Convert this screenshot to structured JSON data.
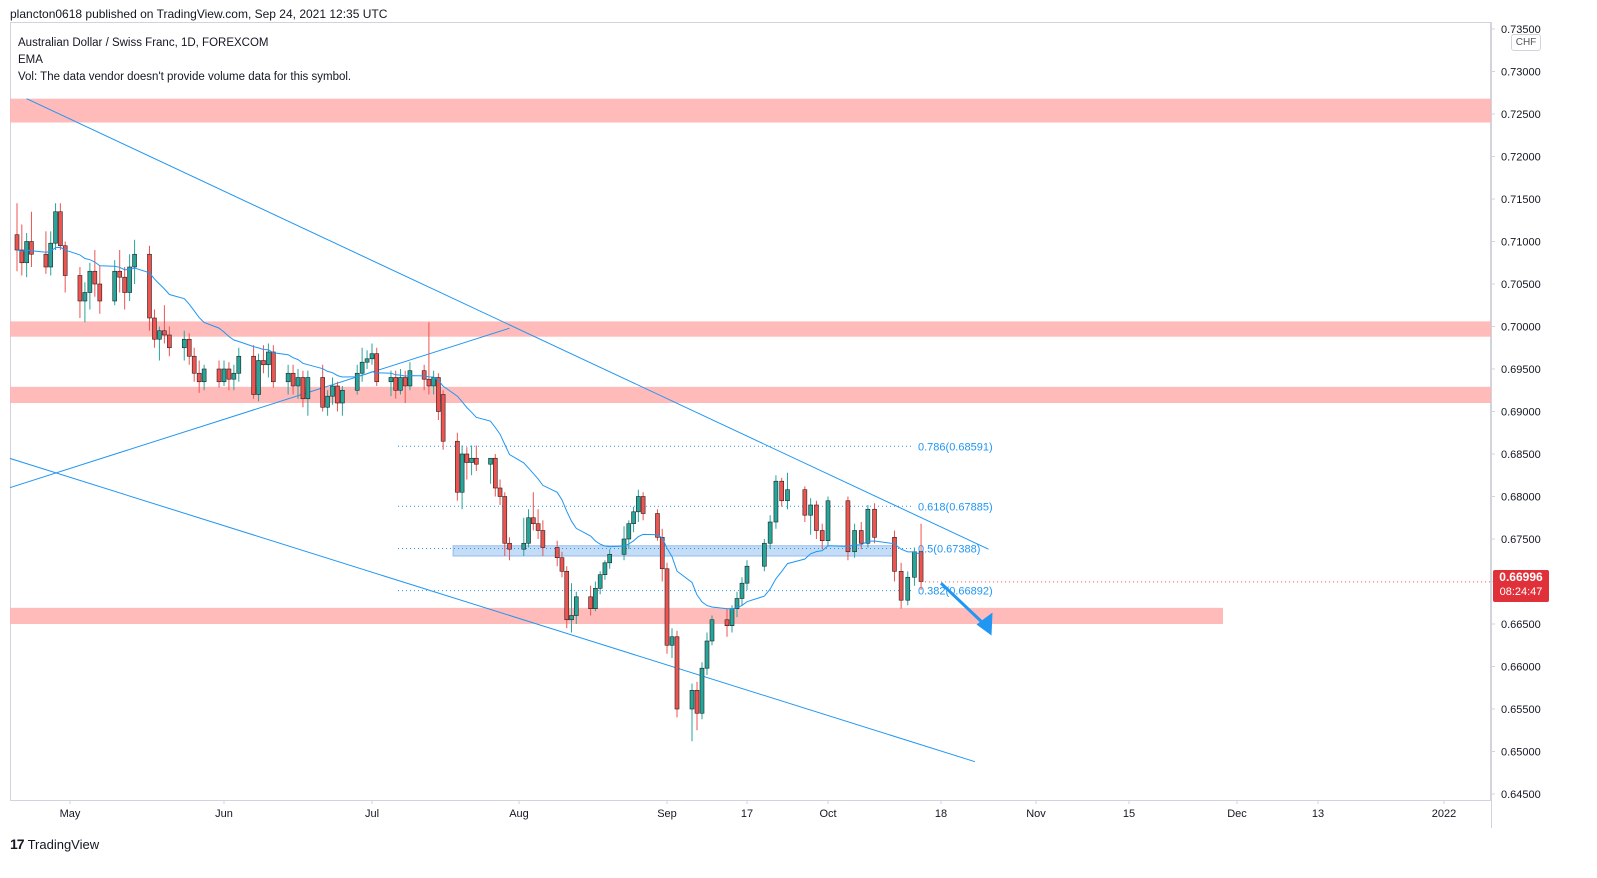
{
  "header": {
    "published": "plancton0618 published on TradingView.com, Sep 24, 2021 12:35 UTC"
  },
  "legend": {
    "symbol": "Australian Dollar / Swiss Franc, 1D, FOREXCOM",
    "indicator": "EMA",
    "vol_note": "Vol: The data vendor doesn't provide volume data for this symbol."
  },
  "currency": "CHF",
  "last_price": {
    "value": "0.66996",
    "countdown": "08:24:47"
  },
  "footer": {
    "brand": "TradingView",
    "logo": "17"
  },
  "colors": {
    "up": "#26a69a",
    "down": "#ef5350",
    "zone": "#ffb3b3",
    "line": "#2196f3",
    "ema": "#2196f3",
    "axis": "#131722"
  },
  "chart_data": {
    "type": "candlestick",
    "symbol": "AUDCHF",
    "timeframe": "1D",
    "ylim": [
      0.645,
      0.736
    ],
    "y_ticks": [
      "0.73500",
      "0.73000",
      "0.72500",
      "0.72000",
      "0.71500",
      "0.71000",
      "0.70500",
      "0.70000",
      "0.69500",
      "0.69000",
      "0.68500",
      "0.68000",
      "0.67500",
      "0.67000",
      "0.66500",
      "0.66000",
      "0.65500",
      "0.65000",
      "0.64500"
    ],
    "x_ticks": [
      {
        "label": "May",
        "date": "2021-05-01"
      },
      {
        "label": "Jun",
        "date": "2021-06-01"
      },
      {
        "label": "Jul",
        "date": "2021-07-01"
      },
      {
        "label": "Aug",
        "date": "2021-08-01"
      },
      {
        "label": "Sep",
        "date": "2021-09-01"
      },
      {
        "label": "17",
        "date": "2021-09-17"
      },
      {
        "label": "Oct",
        "date": "2021-10-01"
      },
      {
        "label": "18",
        "date": "2021-10-18"
      },
      {
        "label": "Nov",
        "date": "2021-11-01"
      },
      {
        "label": "15",
        "date": "2021-11-15"
      },
      {
        "label": "Dec",
        "date": "2021-12-01"
      },
      {
        "label": "13",
        "date": "2021-12-13"
      },
      {
        "label": "2022",
        "date": "2022-01-01"
      }
    ],
    "candles": [
      [
        "2021-04-20",
        0.7108,
        0.7145,
        0.7065,
        0.709
      ],
      [
        "2021-04-21",
        0.709,
        0.712,
        0.706,
        0.7075
      ],
      [
        "2021-04-22",
        0.7075,
        0.711,
        0.7058,
        0.71
      ],
      [
        "2021-04-23",
        0.71,
        0.7135,
        0.707,
        0.7085
      ],
      [
        "2021-04-26",
        0.7085,
        0.7112,
        0.7062,
        0.707
      ],
      [
        "2021-04-27",
        0.707,
        0.7112,
        0.706,
        0.7098
      ],
      [
        "2021-04-28",
        0.7098,
        0.7145,
        0.709,
        0.7135
      ],
      [
        "2021-04-29",
        0.7135,
        0.7145,
        0.709,
        0.7095
      ],
      [
        "2021-04-30",
        0.7095,
        0.71,
        0.704,
        0.706
      ],
      [
        "2021-05-03",
        0.706,
        0.707,
        0.701,
        0.703
      ],
      [
        "2021-05-04",
        0.703,
        0.7052,
        0.7005,
        0.704
      ],
      [
        "2021-05-05",
        0.704,
        0.7075,
        0.702,
        0.7065
      ],
      [
        "2021-05-06",
        0.7065,
        0.709,
        0.7035,
        0.705
      ],
      [
        "2021-05-07",
        0.705,
        0.7072,
        0.7015,
        0.703
      ],
      [
        "2021-05-10",
        0.703,
        0.7078,
        0.7025,
        0.7065
      ],
      [
        "2021-05-11",
        0.7065,
        0.709,
        0.704,
        0.7058
      ],
      [
        "2021-05-12",
        0.7058,
        0.707,
        0.702,
        0.704
      ],
      [
        "2021-05-13",
        0.704,
        0.7085,
        0.703,
        0.707
      ],
      [
        "2021-05-14",
        0.707,
        0.7102,
        0.705,
        0.7085
      ],
      [
        "2021-05-17",
        0.7085,
        0.7095,
        0.6995,
        0.701
      ],
      [
        "2021-05-18",
        0.701,
        0.702,
        0.6975,
        0.6985
      ],
      [
        "2021-05-19",
        0.6985,
        0.7,
        0.696,
        0.6995
      ],
      [
        "2021-05-20",
        0.6995,
        0.7025,
        0.698,
        0.699
      ],
      [
        "2021-05-21",
        0.699,
        0.7,
        0.6965,
        0.6975
      ],
      [
        "2021-05-24",
        0.6975,
        0.6995,
        0.696,
        0.6985
      ],
      [
        "2021-05-25",
        0.6985,
        0.6992,
        0.6955,
        0.6965
      ],
      [
        "2021-05-26",
        0.6965,
        0.6975,
        0.6935,
        0.6945
      ],
      [
        "2021-05-27",
        0.6945,
        0.696,
        0.6922,
        0.6935
      ],
      [
        "2021-05-28",
        0.6935,
        0.6955,
        0.6925,
        0.695
      ],
      [
        "2021-05-31",
        0.695,
        0.696,
        0.6928,
        0.6935
      ],
      [
        "2021-06-01",
        0.6935,
        0.696,
        0.693,
        0.695
      ],
      [
        "2021-06-02",
        0.695,
        0.6958,
        0.6925,
        0.6938
      ],
      [
        "2021-06-03",
        0.6938,
        0.6955,
        0.6925,
        0.6945
      ],
      [
        "2021-06-04",
        0.6945,
        0.6975,
        0.6935,
        0.6965
      ],
      [
        "2021-06-07",
        0.6965,
        0.6978,
        0.6915,
        0.692
      ],
      [
        "2021-06-08",
        0.692,
        0.6968,
        0.6912,
        0.696
      ],
      [
        "2021-06-09",
        0.696,
        0.6978,
        0.6945,
        0.6955
      ],
      [
        "2021-06-10",
        0.6955,
        0.698,
        0.694,
        0.697
      ],
      [
        "2021-06-11",
        0.697,
        0.6978,
        0.6928,
        0.6935
      ],
      [
        "2021-06-14",
        0.6935,
        0.6955,
        0.692,
        0.6945
      ],
      [
        "2021-06-15",
        0.6945,
        0.6955,
        0.692,
        0.693
      ],
      [
        "2021-06-16",
        0.693,
        0.695,
        0.6915,
        0.694
      ],
      [
        "2021-06-17",
        0.694,
        0.6948,
        0.6905,
        0.6915
      ],
      [
        "2021-06-18",
        0.6915,
        0.6948,
        0.6895,
        0.694
      ],
      [
        "2021-06-21",
        0.694,
        0.6955,
        0.69,
        0.6905
      ],
      [
        "2021-06-22",
        0.6905,
        0.6925,
        0.6895,
        0.6918
      ],
      [
        "2021-06-23",
        0.6918,
        0.694,
        0.6908,
        0.693
      ],
      [
        "2021-06-24",
        0.693,
        0.6935,
        0.69,
        0.691
      ],
      [
        "2021-06-25",
        0.691,
        0.693,
        0.6895,
        0.6925
      ],
      [
        "2021-06-28",
        0.6925,
        0.6955,
        0.692,
        0.6945
      ],
      [
        "2021-06-29",
        0.6945,
        0.6975,
        0.6935,
        0.6958
      ],
      [
        "2021-06-30",
        0.6958,
        0.6972,
        0.695,
        0.6962
      ],
      [
        "2021-07-01",
        0.6962,
        0.698,
        0.6955,
        0.6968
      ],
      [
        "2021-07-02",
        0.6968,
        0.6975,
        0.693,
        0.6935
      ],
      [
        "2021-07-05",
        0.6935,
        0.6948,
        0.6918,
        0.694
      ],
      [
        "2021-07-06",
        0.694,
        0.6948,
        0.6915,
        0.6925
      ],
      [
        "2021-07-07",
        0.6925,
        0.695,
        0.692,
        0.694
      ],
      [
        "2021-07-08",
        0.694,
        0.6948,
        0.691,
        0.693
      ],
      [
        "2021-07-09",
        0.693,
        0.6958,
        0.6925,
        0.6948
      ],
      [
        "2021-07-12",
        0.6948,
        0.6955,
        0.6925,
        0.6938
      ],
      [
        "2021-07-13",
        0.6938,
        0.7005,
        0.692,
        0.693
      ],
      [
        "2021-07-14",
        0.693,
        0.6948,
        0.692,
        0.694
      ],
      [
        "2021-07-15",
        0.694,
        0.6945,
        0.689,
        0.69
      ],
      [
        "2021-07-16",
        0.692,
        0.6925,
        0.6855,
        0.6865
      ],
      [
        "2021-07-19",
        0.6865,
        0.6875,
        0.6795,
        0.6805
      ],
      [
        "2021-07-20",
        0.6805,
        0.686,
        0.6785,
        0.685
      ],
      [
        "2021-07-21",
        0.685,
        0.6858,
        0.682,
        0.684
      ],
      [
        "2021-07-22",
        0.684,
        0.686,
        0.6825,
        0.6845
      ],
      [
        "2021-07-23",
        0.6845,
        0.686,
        0.683,
        0.6838
      ],
      [
        "2021-07-26",
        0.6838,
        0.6845,
        0.6815,
        0.6845
      ],
      [
        "2021-07-27",
        0.6845,
        0.685,
        0.68,
        0.681
      ],
      [
        "2021-07-28",
        0.681,
        0.682,
        0.679,
        0.68
      ],
      [
        "2021-07-29",
        0.68,
        0.6805,
        0.673,
        0.6745
      ],
      [
        "2021-07-30",
        0.6745,
        0.6752,
        0.6725,
        0.6738
      ],
      [
        "2021-08-02",
        0.6738,
        0.6775,
        0.673,
        0.6745
      ],
      [
        "2021-08-03",
        0.6745,
        0.6785,
        0.674,
        0.6775
      ],
      [
        "2021-08-04",
        0.6775,
        0.6805,
        0.676,
        0.6768
      ],
      [
        "2021-08-05",
        0.6768,
        0.6785,
        0.675,
        0.676
      ],
      [
        "2021-08-06",
        0.676,
        0.6772,
        0.673,
        0.674
      ],
      [
        "2021-08-09",
        0.674,
        0.6748,
        0.6718,
        0.6728
      ],
      [
        "2021-08-10",
        0.6728,
        0.6735,
        0.6705,
        0.6712
      ],
      [
        "2021-08-11",
        0.6712,
        0.6718,
        0.6645,
        0.6655
      ],
      [
        "2021-08-12",
        0.6655,
        0.6698,
        0.664,
        0.666
      ],
      [
        "2021-08-13",
        0.666,
        0.6688,
        0.665,
        0.6682
      ],
      [
        "2021-08-16",
        0.6682,
        0.6695,
        0.666,
        0.6668
      ],
      [
        "2021-08-17",
        0.6668,
        0.67,
        0.6665,
        0.6692
      ],
      [
        "2021-08-18",
        0.6692,
        0.6712,
        0.6685,
        0.6708
      ],
      [
        "2021-08-19",
        0.6708,
        0.6725,
        0.6702,
        0.6722
      ],
      [
        "2021-08-20",
        0.6722,
        0.6738,
        0.6715,
        0.6732
      ],
      [
        "2021-08-23",
        0.6732,
        0.6765,
        0.6725,
        0.675
      ],
      [
        "2021-08-24",
        0.675,
        0.6772,
        0.6738,
        0.6768
      ],
      [
        "2021-08-25",
        0.6768,
        0.6788,
        0.6758,
        0.6782
      ],
      [
        "2021-08-26",
        0.6782,
        0.6808,
        0.677,
        0.68
      ],
      [
        "2021-08-27",
        0.68,
        0.6805,
        0.6772,
        0.678
      ],
      [
        "2021-08-30",
        0.678,
        0.6785,
        0.6748,
        0.6752
      ],
      [
        "2021-08-31",
        0.6752,
        0.6762,
        0.67,
        0.6715
      ],
      [
        "2021-09-01",
        0.6715,
        0.6722,
        0.6615,
        0.6625
      ],
      [
        "2021-09-02",
        0.6625,
        0.6645,
        0.661,
        0.6635
      ],
      [
        "2021-09-03",
        0.6635,
        0.6642,
        0.654,
        0.655
      ],
      [
        "2021-09-06",
        0.655,
        0.658,
        0.6512,
        0.6572
      ],
      [
        "2021-09-07",
        0.6572,
        0.6582,
        0.6525,
        0.6545
      ],
      [
        "2021-09-08",
        0.6545,
        0.6605,
        0.6538,
        0.6598
      ],
      [
        "2021-09-09",
        0.6598,
        0.664,
        0.659,
        0.663
      ],
      [
        "2021-09-10",
        0.663,
        0.666,
        0.6625,
        0.6655
      ],
      [
        "2021-09-13",
        0.6655,
        0.6668,
        0.6635,
        0.6648
      ],
      [
        "2021-09-14",
        0.6648,
        0.6672,
        0.664,
        0.6668
      ],
      [
        "2021-09-15",
        0.6668,
        0.6688,
        0.6658,
        0.668
      ],
      [
        "2021-09-16",
        0.668,
        0.6705,
        0.6672,
        0.6698
      ],
      [
        "2021-09-17",
        0.6698,
        0.6725,
        0.669,
        0.6718
      ],
      [
        "2021-09-20",
        0.6718,
        0.675,
        0.6712,
        0.6745
      ],
      [
        "2021-09-21",
        0.6745,
        0.6778,
        0.6738,
        0.677
      ],
      [
        "2021-09-22",
        0.677,
        0.6825,
        0.6762,
        0.6818
      ],
      [
        "2021-09-23",
        0.6818,
        0.6822,
        0.6788,
        0.6795
      ],
      [
        "2021-09-24",
        0.6795,
        0.6828,
        0.6785,
        0.6808
      ],
      [
        "2021-09-27",
        0.6808,
        0.6812,
        0.677,
        0.6778
      ],
      [
        "2021-09-28",
        0.6778,
        0.6798,
        0.6755,
        0.679
      ],
      [
        "2021-09-29",
        0.679,
        0.6795,
        0.675,
        0.676
      ],
      [
        "2021-09-30",
        0.676,
        0.6768,
        0.6738,
        0.6748
      ],
      [
        "2021-10-01",
        0.6748,
        0.68,
        0.6742,
        0.6795
      ],
      [
        "2021-10-04",
        0.6795,
        0.68,
        0.6725,
        0.6735
      ],
      [
        "2021-10-05",
        0.6735,
        0.6768,
        0.6728,
        0.676
      ],
      [
        "2021-10-06",
        0.676,
        0.677,
        0.6738,
        0.6745
      ],
      [
        "2021-10-07",
        0.6745,
        0.679,
        0.674,
        0.6785
      ],
      [
        "2021-10-08",
        0.6785,
        0.6792,
        0.6745,
        0.6752
      ],
      [
        "2021-10-11",
        0.6752,
        0.676,
        0.67,
        0.6712
      ],
      [
        "2021-10-12",
        0.6712,
        0.6722,
        0.6668,
        0.6678
      ],
      [
        "2021-10-13",
        0.6678,
        0.6712,
        0.6672,
        0.6705
      ],
      [
        "2021-10-14",
        0.6705,
        0.674,
        0.6695,
        0.6735
      ],
      [
        "2021-10-15",
        0.6735,
        0.6768,
        0.669,
        0.67
      ]
    ],
    "ema_line": "blue curve (partial)",
    "zones": [
      {
        "label": "resistance",
        "from": 0.724,
        "to": 0.7268
      },
      {
        "label": "resistance",
        "from": 0.6988,
        "to": 0.7006
      },
      {
        "label": "resistance",
        "from": 0.691,
        "to": 0.6929
      },
      {
        "label": "support",
        "from": 0.665,
        "to": 0.6669
      }
    ],
    "blue_zone": {
      "from": 0.673,
      "to": 0.6742,
      "x_from": "2021-07-16",
      "x_to": "2021-11-01"
    },
    "fib_levels": [
      {
        "ratio": "0.786",
        "price": 0.68591,
        "label": "0.786(0.68591)"
      },
      {
        "ratio": "0.618",
        "price": 0.67885,
        "label": "0.618(0.67885)"
      },
      {
        "ratio": "0.5",
        "price": 0.67388,
        "label": "0.5(0.67388)"
      },
      {
        "ratio": "0.382",
        "price": 0.66892,
        "label": "0.382(0.66892)"
      }
    ],
    "fib_x_from": "2021-07-13",
    "fib_x_to": "2021-11-05",
    "trendlines": [
      {
        "name": "descending resistance",
        "p1": [
          "2021-04-22",
          0.7268
        ],
        "p2": [
          "2021-10-25",
          0.6738
        ]
      },
      {
        "name": "lower channel",
        "p1": [
          "2021-04-10",
          0.686
        ],
        "p2": [
          "2021-10-23",
          0.6488
        ]
      },
      {
        "name": "rising line",
        "p1": [
          "2021-04-10",
          0.6795
        ],
        "p2": [
          "2021-07-30",
          0.6998
        ]
      }
    ],
    "arrow": {
      "from": [
        "2021-10-18",
        0.6698
      ],
      "to": [
        "2021-10-25",
        0.664
      ]
    },
    "grid": false
  }
}
